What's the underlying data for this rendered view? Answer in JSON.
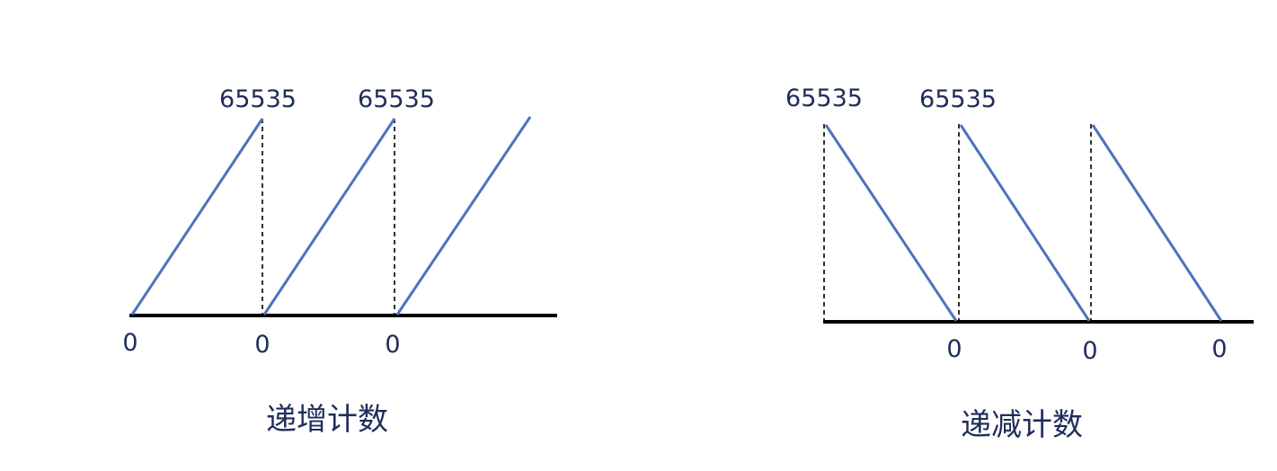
{
  "up_counting": {
    "caption": "递增计数",
    "peak_labels": [
      "65535",
      "65535"
    ],
    "zero_labels": [
      "0",
      "0",
      "0"
    ]
  },
  "down_counting": {
    "caption": "递减计数",
    "peak_labels": [
      "65535",
      "65535"
    ],
    "zero_labels": [
      "0",
      "0",
      "0"
    ]
  },
  "colors": {
    "ramp": "#4a74bf",
    "text": "#1f2d5a",
    "axis": "#000000"
  }
}
